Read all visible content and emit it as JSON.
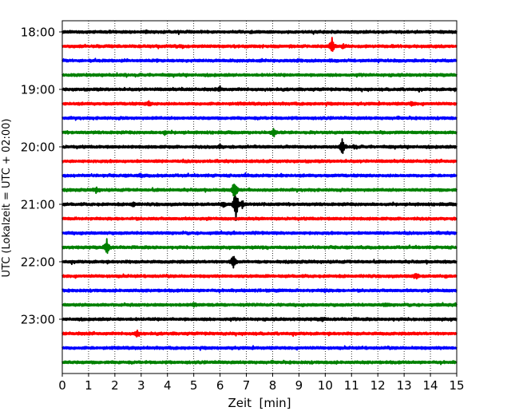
{
  "chart_data": {
    "type": "line",
    "chart_kind": "helicorder seismogram",
    "xlabel": "Zeit  [min]",
    "ylabel": "UTC (Lokalzeit = UTC + 02:00)",
    "xlim": [
      0,
      15
    ],
    "x_ticks": [
      "0",
      "1",
      "2",
      "3",
      "4",
      "5",
      "6",
      "7",
      "8",
      "9",
      "10",
      "11",
      "12",
      "13",
      "14",
      "15"
    ],
    "y_ticks": [
      "18:00",
      "19:00",
      "20:00",
      "21:00",
      "22:00",
      "23:00"
    ],
    "vertical_grid": "dotted, every minute",
    "trace_interval_minutes": 15,
    "trace_colors": [
      "#000000",
      "#ff0000",
      "#0000ff",
      "#008000"
    ],
    "traces": [
      {
        "start": "18:00",
        "color": "#000000",
        "events": [
          [
            3.2,
            0.08
          ]
        ]
      },
      {
        "start": "18:15",
        "color": "#ff0000",
        "events": [
          [
            10.25,
            0.62
          ],
          [
            10.7,
            0.12
          ]
        ]
      },
      {
        "start": "18:30",
        "color": "#0000ff",
        "events": []
      },
      {
        "start": "18:45",
        "color": "#008000",
        "events": []
      },
      {
        "start": "19:00",
        "color": "#000000",
        "events": [
          [
            6.0,
            0.12
          ]
        ]
      },
      {
        "start": "19:15",
        "color": "#ff0000",
        "events": [
          [
            3.3,
            0.15
          ],
          [
            13.3,
            0.12
          ]
        ]
      },
      {
        "start": "19:30",
        "color": "#0000ff",
        "events": []
      },
      {
        "start": "19:45",
        "color": "#008000",
        "events": [
          [
            3.9,
            0.12
          ],
          [
            8.05,
            0.3
          ]
        ]
      },
      {
        "start": "20:00",
        "color": "#000000",
        "events": [
          [
            6.0,
            0.12
          ],
          [
            10.65,
            0.55
          ],
          [
            11.1,
            0.1
          ]
        ]
      },
      {
        "start": "20:15",
        "color": "#ff0000",
        "events": []
      },
      {
        "start": "20:30",
        "color": "#0000ff",
        "events": [
          [
            3.0,
            0.08
          ]
        ]
      },
      {
        "start": "20:45",
        "color": "#008000",
        "events": [
          [
            1.3,
            0.2
          ],
          [
            6.55,
            0.85
          ]
        ]
      },
      {
        "start": "21:00",
        "color": "#000000",
        "events": [
          [
            2.7,
            0.15
          ],
          [
            6.1,
            0.15
          ],
          [
            6.6,
            1.3
          ],
          [
            6.85,
            0.2
          ]
        ]
      },
      {
        "start": "21:15",
        "color": "#ff0000",
        "events": []
      },
      {
        "start": "21:30",
        "color": "#0000ff",
        "events": []
      },
      {
        "start": "21:45",
        "color": "#008000",
        "events": [
          [
            1.7,
            0.6
          ]
        ]
      },
      {
        "start": "22:00",
        "color": "#000000",
        "events": [
          [
            6.5,
            0.6
          ]
        ]
      },
      {
        "start": "22:15",
        "color": "#ff0000",
        "events": [
          [
            13.45,
            0.2
          ]
        ]
      },
      {
        "start": "22:30",
        "color": "#0000ff",
        "events": [
          [
            10.0,
            0.1
          ]
        ]
      },
      {
        "start": "22:45",
        "color": "#008000",
        "events": [
          [
            5.0,
            0.1
          ],
          [
            12.3,
            0.1
          ]
        ]
      },
      {
        "start": "23:00",
        "color": "#000000",
        "events": [
          [
            9.9,
            0.1
          ]
        ]
      },
      {
        "start": "23:15",
        "color": "#ff0000",
        "events": [
          [
            2.85,
            0.25
          ]
        ]
      },
      {
        "start": "23:30",
        "color": "#0000ff",
        "events": []
      },
      {
        "start": "23:45",
        "color": "#008000",
        "events": []
      }
    ]
  }
}
